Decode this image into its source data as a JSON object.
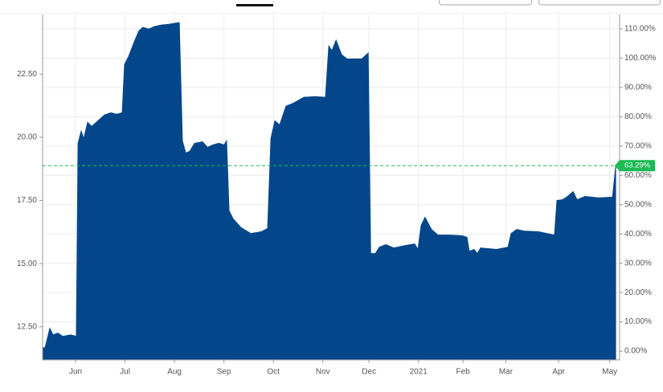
{
  "chart_data": {
    "type": "area",
    "x": [
      0,
      1.5,
      4.4,
      6.3,
      9.3,
      12.2,
      17,
      20.5,
      21.5,
      23.4,
      25,
      27.3,
      29.8,
      33.6,
      37.5,
      41.4,
      44.9,
      48.3,
      49.7,
      52.2,
      56,
      58.5,
      60.9,
      64.4,
      67.8,
      71.7,
      76.5,
      82.9,
      84.8,
      86.8,
      89.2,
      92.2,
      97,
      100,
      103.4,
      106.8,
      110.2,
      111.6,
      113.1,
      115.6,
      120.4,
      126.3,
      132.6,
      136.5,
      138.5,
      140.9,
      143.8,
      147.7,
      152.1,
      158.5,
      165.3,
      171.6,
      173.6,
      175.5,
      178,
      181.4,
      184.8,
      193.6,
      197.5,
      199,
      201.9,
      204.3,
      208.2,
      213.1,
      220.4,
      225.7,
      227.7,
      229.6,
      232,
      235.9,
      239.8,
      247.2,
      254.5,
      257.4,
      258.8,
      261.8,
      263.7,
      265.7,
      275.4,
      282.3,
      284.2,
      287.6,
      292,
      300.8,
      310.5,
      312,
      315.4,
      317.9,
      321.8,
      324.2,
      329.1,
      337.4,
      345.7,
      347.6
    ],
    "series": [
      {
        "color": "#03478a",
        "values": [
          11.67,
          11.67,
          12.44,
          12.18,
          12.25,
          12.12,
          12.18,
          12.12,
          19.76,
          20.24,
          19.95,
          20.59,
          20.43,
          20.65,
          20.88,
          20.97,
          20.91,
          20.97,
          22.88,
          23.2,
          23.84,
          24.22,
          24.35,
          24.28,
          24.38,
          24.44,
          24.47,
          24.54,
          19.86,
          19.38,
          19.44,
          19.76,
          19.82,
          19.6,
          19.7,
          19.76,
          19.7,
          19.86,
          17.09,
          16.77,
          16.42,
          16.19,
          16.26,
          16.39,
          19.95,
          20.65,
          20.49,
          21.23,
          21.35,
          21.58,
          21.61,
          21.58,
          23.61,
          23.42,
          23.84,
          23.26,
          23.1,
          23.1,
          23.33,
          15.4,
          15.4,
          15.65,
          15.75,
          15.62,
          15.72,
          15.78,
          15.56,
          16.51,
          16.83,
          16.35,
          16.13,
          16.13,
          16.1,
          16.04,
          15.49,
          15.56,
          15.4,
          15.62,
          15.56,
          15.65,
          16.19,
          16.35,
          16.29,
          16.26,
          16.13,
          17.5,
          17.53,
          17.63,
          17.85,
          17.53,
          17.66,
          17.6,
          17.63,
          18.84
        ]
      }
    ],
    "xlim": [
      0,
      350
    ],
    "xticks": [
      {
        "value": 20,
        "label": "Jun"
      },
      {
        "value": 50,
        "label": "Jul"
      },
      {
        "value": 80,
        "label": "Aug"
      },
      {
        "value": 110,
        "label": "Sep"
      },
      {
        "value": 140,
        "label": "Oct"
      },
      {
        "value": 170,
        "label": "Nov"
      },
      {
        "value": 198,
        "label": "Dec"
      },
      {
        "value": 228,
        "label": "2021"
      },
      {
        "value": 255,
        "label": "Feb"
      },
      {
        "value": 281,
        "label": "Mar"
      },
      {
        "value": 313,
        "label": "Apr"
      },
      {
        "value": 344,
        "label": "May"
      }
    ],
    "ylim": [
      11.19,
      24.86
    ],
    "yticks": [
      {
        "value": 12.5,
        "label": "12.50"
      },
      {
        "value": 15,
        "label": "15.00"
      },
      {
        "value": 17.5,
        "label": "17.50"
      },
      {
        "value": 20,
        "label": "20.00"
      },
      {
        "value": 22.5,
        "label": "22.50"
      }
    ],
    "y2lim": [
      -3,
      114.9
    ],
    "y2ticks": [
      {
        "value": 0,
        "label": "0.00%"
      },
      {
        "value": 10,
        "label": "10.00%"
      },
      {
        "value": 20,
        "label": "20.00%"
      },
      {
        "value": 30,
        "label": "30.00%"
      },
      {
        "value": 40,
        "label": "40.00%"
      },
      {
        "value": 50,
        "label": "50.00%"
      },
      {
        "value": 60,
        "label": "60.00%"
      },
      {
        "value": 70,
        "label": "70.00%"
      },
      {
        "value": 80,
        "label": "80.00%"
      },
      {
        "value": 90,
        "label": "90.00%"
      },
      {
        "value": 100,
        "label": "100.00%"
      },
      {
        "value": 110,
        "label": "110.00%"
      }
    ],
    "annotation": {
      "y2": 63.29,
      "label": "63.29%",
      "color": "#1db954"
    },
    "grid": true
  }
}
